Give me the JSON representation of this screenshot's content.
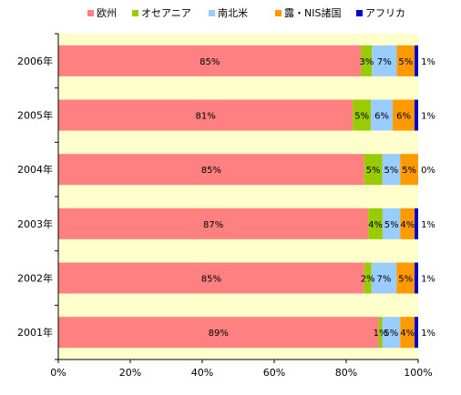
{
  "chart_data": {
    "type": "bar",
    "orientation": "horizontal",
    "stacked": "percent",
    "categories": [
      "2006年",
      "2005年",
      "2004年",
      "2003年",
      "2002年",
      "2001年"
    ],
    "series": [
      {
        "name": "欧州",
        "color": "#ff8080",
        "values": [
          85,
          81,
          85,
          87,
          85,
          89
        ],
        "labels": [
          "85%",
          "81%",
          "85%",
          "87%",
          "85%",
          "89%"
        ]
      },
      {
        "name": "オセアニア",
        "color": "#99cc00",
        "values": [
          3,
          5,
          5,
          4,
          2,
          1
        ],
        "labels": [
          "3%",
          "5%",
          "5%",
          "4%",
          "2%",
          "1%"
        ]
      },
      {
        "name": "南北米",
        "color": "#99ccff",
        "values": [
          7,
          6,
          5,
          5,
          7,
          5
        ],
        "labels": [
          "7%",
          "6%",
          "5%",
          "5%",
          "7%",
          "5%"
        ]
      },
      {
        "name": "露・NIS諸国",
        "color": "#ff9900",
        "values": [
          5,
          6,
          5,
          4,
          5,
          4
        ],
        "labels": [
          "5%",
          "6%",
          "5%",
          "4%",
          "5%",
          "4%"
        ]
      },
      {
        "name": "アフリカ",
        "color": "#0000cc",
        "values": [
          1,
          1,
          0,
          1,
          1,
          1
        ],
        "labels": [
          "1%",
          "1%",
          "0%",
          "1%",
          "1%",
          "1%"
        ]
      }
    ],
    "x_ticks": [
      "0%",
      "20%",
      "40%",
      "60%",
      "80%",
      "100%"
    ],
    "xlim": [
      0,
      100
    ],
    "legend_position": "top",
    "band_colors": [
      "#ffffcc",
      "#ffffcc"
    ],
    "xlabel": "",
    "ylabel": ""
  }
}
